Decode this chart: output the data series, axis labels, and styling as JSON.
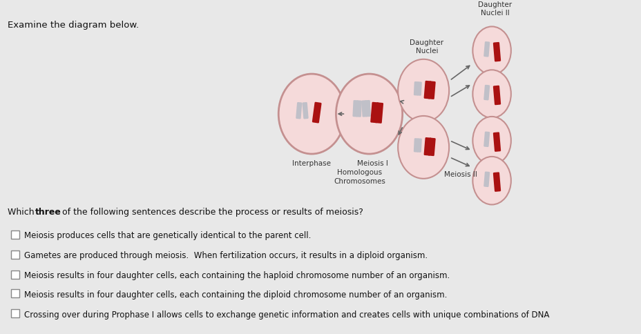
{
  "title": "Examine the diagram below.",
  "options": [
    "Meiosis produces cells that are genetically identical to the parent cell.",
    "Gametes are produced through meiosis.  When fertilization occurs, it results in a diploid organism.",
    "Meiosis results in four daughter cells, each containing the haploid chromosome number of an organism.",
    "Meiosis results in four daughter cells, each containing the diploid chromosome number of an organism.",
    "Crossing over during Prophase I allows cells to exchange genetic information and creates cells with unique combinations of DNA"
  ],
  "labels": {
    "interphase": "Interphase",
    "meiosis1": "Meiosis I",
    "homologous": "Homologous\nChromosomes",
    "meiosis2": "Meiosis II",
    "daughter_nuclei": "Daughter\nNuclei",
    "daughter_nuclei2": "Daughter\nNuclei II"
  },
  "bg_color": "#e8e8e8",
  "cell_fill": "#f5dada",
  "cell_edge": "#c49090",
  "chr_red": "#aa1111",
  "chr_gray": "#c0c0c8",
  "chr_dark_red": "#cc2222"
}
